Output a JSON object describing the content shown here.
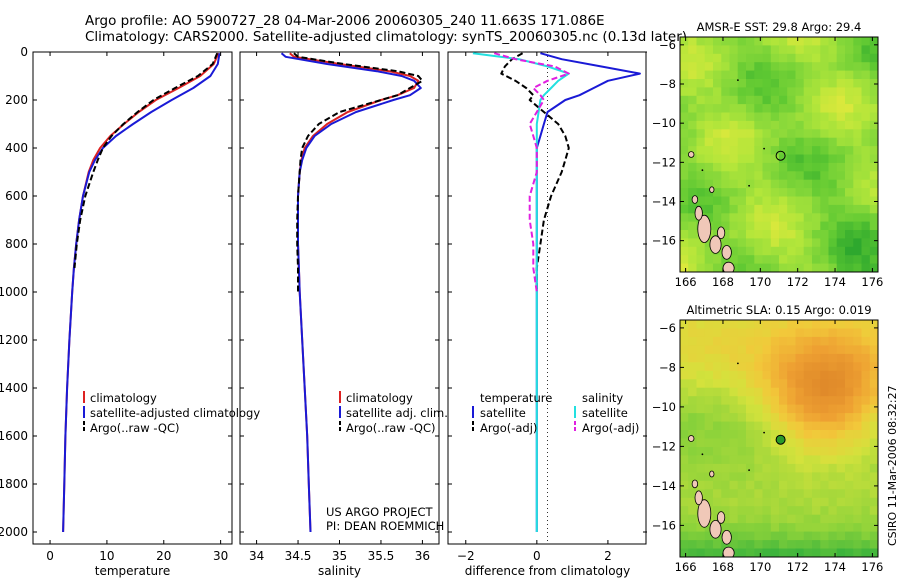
{
  "header": {
    "line1": "Argo profile: AO 5900727_28 04-Mar-2006 20060305_240 11.663S 171.086E",
    "line2": "Climatology: CARS2000. Satellite-adjusted climatology: synTS_20060305.nc (0.13d later)"
  },
  "credit": {
    "project": "US ARGO PROJECT",
    "pi": "PI: DEAN ROEMMICH",
    "stamp": "CSIRO 11-Mar-2006 08:32:27"
  },
  "colors": {
    "climatology": "#dd2222",
    "satellite": "#1a1ad6",
    "argo": "#000000",
    "satellite_salinity": "#22e0e0",
    "argo_salinity": "#e020e0",
    "land": "#f0c8b8"
  },
  "chart_data": [
    {
      "type": "line",
      "id": "temperature",
      "xlabel": "temperature",
      "ylabel": "",
      "xlim": [
        -3,
        32
      ],
      "ylim": [
        2050,
        0
      ],
      "xticks": [
        0,
        10,
        20,
        30
      ],
      "yticks": [
        0,
        200,
        400,
        600,
        800,
        1000,
        1200,
        1400,
        1600,
        1800,
        2000
      ],
      "depth": [
        5,
        50,
        100,
        150,
        200,
        250,
        300,
        350,
        400,
        450,
        500,
        600,
        700,
        800,
        900,
        1000,
        1200,
        1400,
        1600,
        1800,
        2000
      ],
      "series": [
        {
          "name": "climatology",
          "style": "solid",
          "colorKey": "climatology",
          "values": [
            29.6,
            28.8,
            26.4,
            22.6,
            18.6,
            15.6,
            13.0,
            10.6,
            8.8,
            7.6,
            6.8,
            5.8,
            5.1,
            4.6,
            4.2,
            3.9,
            3.4,
            3.0,
            2.7,
            2.5,
            2.3
          ]
        },
        {
          "name": "satellite-adjusted climatology",
          "style": "solid",
          "colorKey": "satellite",
          "values": [
            29.8,
            29.5,
            28.2,
            25.2,
            21.4,
            17.8,
            14.6,
            11.6,
            9.3,
            7.9,
            6.9,
            5.8,
            5.1,
            4.6,
            4.2,
            3.9,
            3.4,
            3.0,
            2.7,
            2.5,
            2.3
          ]
        },
        {
          "name": "Argo(..raw -QC)",
          "style": "dashed",
          "colorKey": "argo",
          "values": [
            29.4,
            28.6,
            26.0,
            22.0,
            18.2,
            15.4,
            12.9,
            10.8,
            9.3,
            8.4,
            7.6,
            6.2,
            5.3,
            4.7,
            4.3
          ]
        }
      ],
      "legend": {
        "location": "middle-right",
        "entries": [
          "climatology",
          "satellite-adjusted climatology",
          "Argo(..raw -QC)"
        ]
      }
    },
    {
      "type": "line",
      "id": "salinity",
      "xlabel": "salinity",
      "xlim": [
        33.8,
        36.2
      ],
      "ylim": [
        2050,
        0
      ],
      "xticks": [
        34,
        34.5,
        35,
        35.5,
        36
      ],
      "depth": [
        5,
        20,
        50,
        80,
        100,
        120,
        150,
        180,
        200,
        250,
        300,
        350,
        400,
        450,
        500,
        600,
        700,
        800,
        900,
        1000,
        1200,
        1400,
        1600,
        1800,
        2000
      ],
      "series": [
        {
          "name": "climatology",
          "style": "solid",
          "colorKey": "climatology",
          "values": [
            34.4,
            34.45,
            35.0,
            35.6,
            35.85,
            35.95,
            35.9,
            35.7,
            35.5,
            35.1,
            34.85,
            34.68,
            34.58,
            34.54,
            34.52,
            34.5,
            34.5,
            34.5,
            34.51,
            34.52,
            34.55,
            34.58,
            34.61,
            34.63,
            34.65
          ]
        },
        {
          "name": "satellite adj. clim.",
          "style": "solid",
          "colorKey": "satellite",
          "values": [
            34.3,
            34.35,
            34.85,
            35.45,
            35.75,
            35.9,
            35.98,
            35.85,
            35.65,
            35.2,
            34.9,
            34.7,
            34.6,
            34.55,
            34.52,
            34.5,
            34.5,
            34.5,
            34.51,
            34.52,
            34.55,
            34.58,
            34.61,
            34.63,
            34.65
          ]
        },
        {
          "name": "Argo(..raw -QC)",
          "style": "dashed",
          "colorKey": "argo",
          "values": [
            34.45,
            34.5,
            35.05,
            35.7,
            35.95,
            36.0,
            35.85,
            35.7,
            35.5,
            35.0,
            34.75,
            34.62,
            34.55,
            34.53,
            34.52,
            34.5,
            34.49,
            34.49,
            34.5,
            34.5
          ]
        }
      ],
      "legend": {
        "location": "middle-right",
        "entries": [
          "climatology",
          "satellite adj. clim.",
          "Argo(..raw -QC)"
        ]
      }
    },
    {
      "type": "line",
      "id": "difference",
      "xlabel": "difference from climatology",
      "xlim": [
        -2.5,
        3.1
      ],
      "ylim": [
        2050,
        0
      ],
      "xticks": [
        -2,
        0,
        2
      ],
      "depth": [
        5,
        30,
        60,
        90,
        120,
        150,
        180,
        200,
        250,
        300,
        350,
        400,
        450,
        500,
        600,
        700,
        800,
        900,
        1000,
        1200,
        1400,
        1600,
        1800,
        2000
      ],
      "series": [
        {
          "name": "satellite",
          "group": "temperature",
          "style": "solid",
          "colorKey": "satellite",
          "values": [
            0.1,
            0.7,
            1.8,
            2.9,
            2.0,
            1.6,
            1.2,
            0.8,
            0.3,
            0.2,
            0.1,
            0.0,
            0.0,
            0.0,
            0.0,
            0.0,
            0.0,
            0.0,
            0.0,
            0.0,
            0.0,
            0.0,
            0.0,
            0.0
          ]
        },
        {
          "name": "Argo(-adj)",
          "group": "temperature",
          "style": "dashed",
          "colorKey": "argo",
          "values": [
            -0.4,
            -0.7,
            -0.9,
            -1.0,
            -0.6,
            -0.3,
            -0.1,
            -0.2,
            0.2,
            0.6,
            0.8,
            0.9,
            0.8,
            0.7,
            0.4,
            0.2,
            0.1,
            0.0,
            0.0
          ]
        },
        {
          "name": "satellite",
          "group": "salinity",
          "style": "solid",
          "colorKey": "satellite_salinity",
          "values": [
            -1.8,
            -0.5,
            0.3,
            0.9,
            0.6,
            0.4,
            0.2,
            0.1,
            0.05,
            0.0,
            0.0,
            0.0,
            0.0,
            0.0,
            0.0,
            0.0,
            0.0,
            0.0,
            0.0,
            0.0,
            0.0,
            0.0,
            0.0,
            0.0
          ]
        },
        {
          "name": "Argo(-adj)",
          "group": "salinity",
          "style": "dashed",
          "colorKey": "argo_salinity",
          "values": [
            -1.2,
            -0.6,
            0.5,
            0.9,
            0.3,
            -0.1,
            0.1,
            0.2,
            0.0,
            -0.2,
            -0.1,
            0.0,
            0.0,
            0.0,
            -0.2,
            -0.2,
            -0.1,
            -0.1,
            0.0
          ]
        }
      ],
      "legend": {
        "location": "middle-right",
        "headers": [
          "temperature",
          "salinity"
        ],
        "entries": [
          "satellite",
          "Argo(-adj)",
          "satellite",
          "Argo(-adj)"
        ]
      }
    },
    {
      "type": "heatmap",
      "id": "sst-map",
      "title": "AMSR-E SST: 29.8 Argo: 29.4",
      "xlim": [
        165.7,
        176.3
      ],
      "ylim": [
        -17.6,
        -5.6
      ],
      "xticks": [
        166,
        168,
        170,
        172,
        174,
        176
      ],
      "yticks": [
        -6,
        -8,
        -10,
        -12,
        -14,
        -16
      ],
      "marker": {
        "lon": 171.086,
        "lat": -11.663,
        "filled": false
      },
      "colormap": [
        "#2ea82e",
        "#5ec832",
        "#8ad93a",
        "#b4e63a",
        "#dde83c"
      ]
    },
    {
      "type": "heatmap",
      "id": "sla-map",
      "title": "Altimetric SLA: 0.15 Argo: 0.019",
      "xlim": [
        165.7,
        176.3
      ],
      "ylim": [
        -17.6,
        -5.6
      ],
      "xticks": [
        166,
        168,
        170,
        172,
        174,
        176
      ],
      "yticks": [
        -6,
        -8,
        -10,
        -12,
        -14,
        -16
      ],
      "marker": {
        "lon": 171.086,
        "lat": -11.663,
        "filled": true
      },
      "colormap": [
        "#3cb43c",
        "#8ad23a",
        "#d4e23c",
        "#f2c83a",
        "#eea032",
        "#e08a2a"
      ]
    }
  ]
}
